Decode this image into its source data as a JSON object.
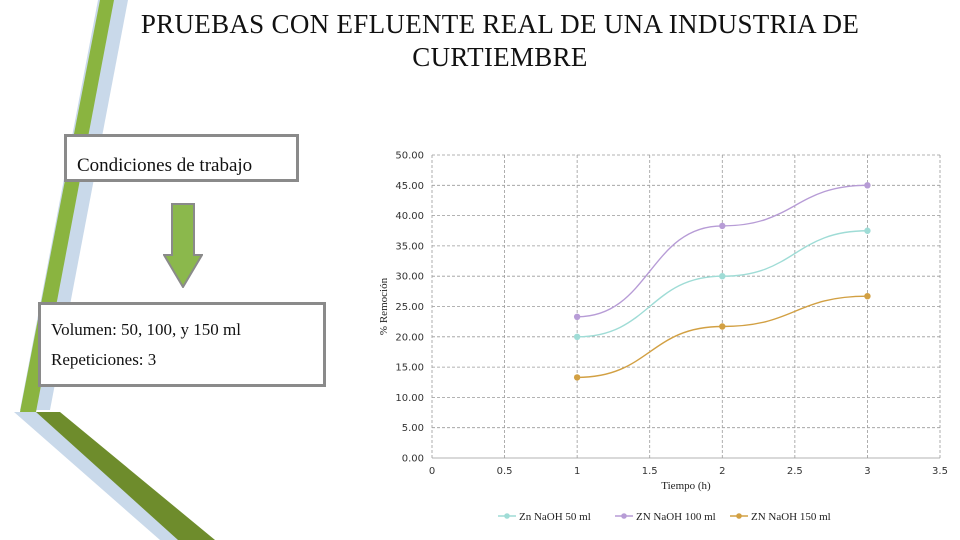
{
  "slide": {
    "title": "PRUEBAS CON EFLUENTE REAL DE UNA INDUSTRIA DE CURTIEMBRE",
    "conditions_label": "Condiciones de trabajo",
    "volume_text": "Volumen: 50, 100, y 150 ml",
    "repetitions_text": "Repeticiones: 3"
  },
  "colors": {
    "green_band": "#8ab440",
    "dark_green": "#6e8c2c",
    "light_blue": "#c9d9ea",
    "arrow_fill": "#8bb84c",
    "box_border": "#8a8a8a"
  },
  "chart_data": {
    "type": "scatter",
    "title": "",
    "xlabel": "Tiempo (h)",
    "ylabel": "% Remoción",
    "xlim": [
      0,
      3.5
    ],
    "ylim": [
      0,
      50
    ],
    "x_ticks": [
      "0",
      "0.5",
      "1",
      "1.5",
      "2",
      "2.5",
      "3",
      "3.5"
    ],
    "y_ticks": [
      "0.00",
      "5.00",
      "10.00",
      "15.00",
      "20.00",
      "25.00",
      "30.00",
      "35.00",
      "40.00",
      "45.00",
      "50.00"
    ],
    "grid": true,
    "legend_position": "bottom",
    "series": [
      {
        "name": "Zn NaOH 50 ml",
        "color": "#9fdcd6",
        "x": [
          1,
          2,
          3
        ],
        "y": [
          20.0,
          30.0,
          37.5
        ]
      },
      {
        "name": "ZN NaOH 100 ml",
        "color": "#b79cd6",
        "x": [
          1,
          2,
          3
        ],
        "y": [
          23.3,
          38.3,
          45.0
        ]
      },
      {
        "name": "ZN NaOH 150 ml",
        "color": "#d2a043",
        "x": [
          1,
          2,
          3
        ],
        "y": [
          13.3,
          21.7,
          26.7
        ]
      }
    ]
  }
}
